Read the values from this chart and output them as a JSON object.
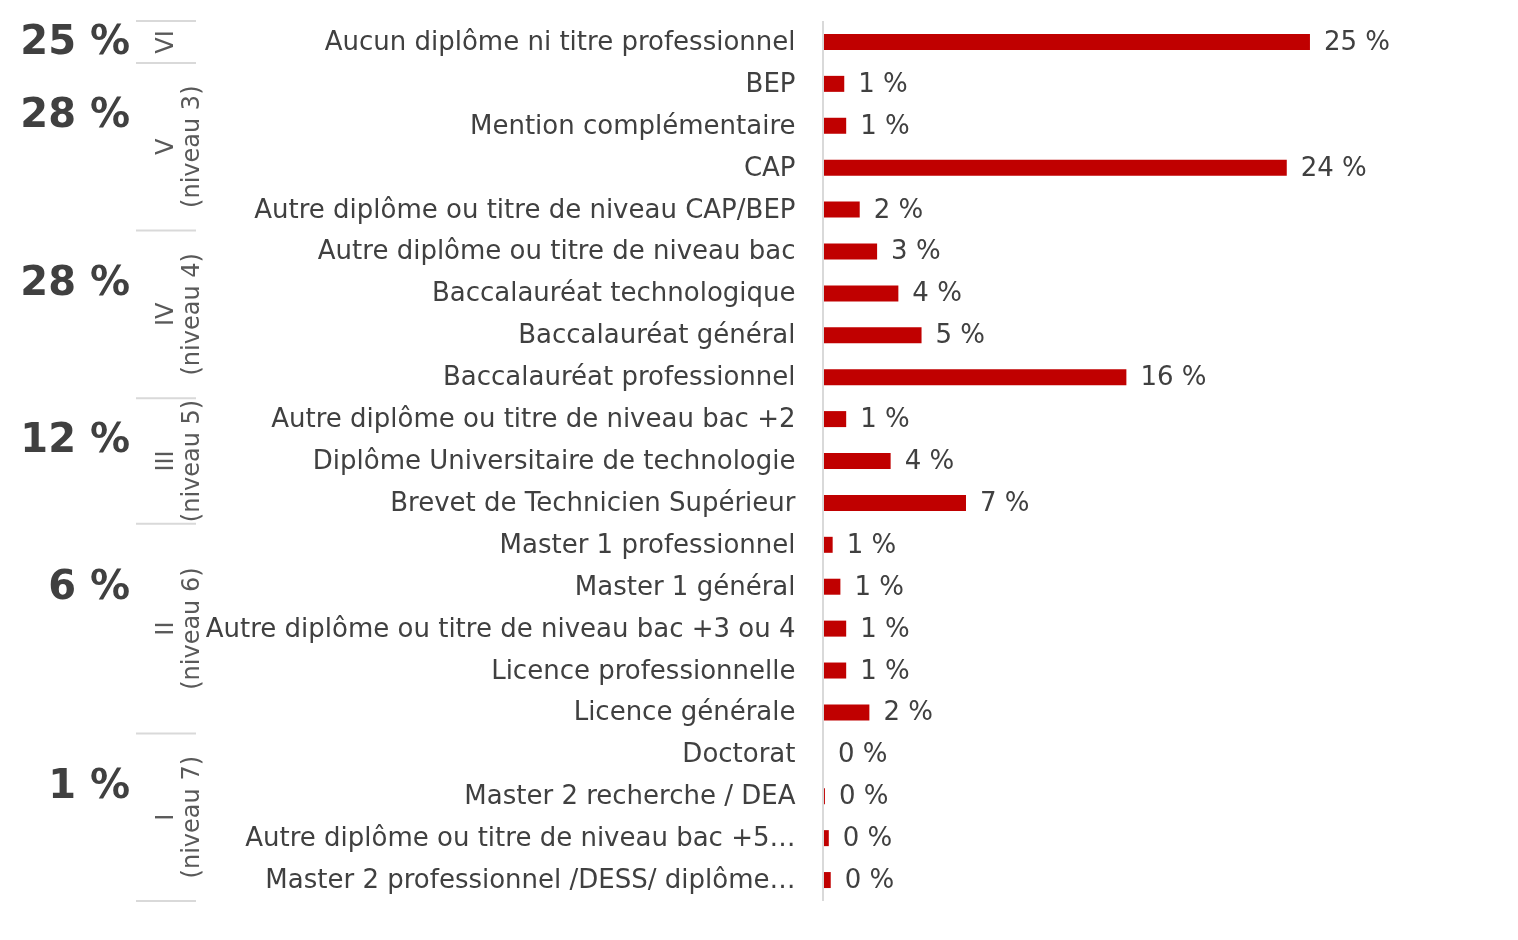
{
  "chart_data": {
    "type": "bar",
    "orientation": "horizontal",
    "categories": [
      "Aucun diplôme ni titre professionnel",
      "BEP",
      "Mention complémentaire",
      "CAP",
      "Autre diplôme ou titre de niveau CAP/BEP",
      "Autre diplôme ou titre de niveau bac",
      "Baccalauréat technologique",
      "Baccalauréat général",
      "Baccalauréat professionnel",
      "Autre diplôme ou titre de niveau bac +2",
      "Diplôme Universitaire de technologie",
      "Brevet de Technicien Supérieur",
      "Master 1 professionnel",
      "Master 1 général",
      "Autre diplôme ou titre de niveau bac +3 ou 4",
      "Licence professionnelle",
      "Licence générale",
      "Doctorat",
      "Master 2 recherche / DEA",
      "Autre diplôme ou titre de niveau bac +5…",
      "Master 2 professionnel /DESS/ diplôme…"
    ],
    "series": [
      {
        "color": "#c00000",
        "values": [
          25.2,
          1.1,
          1.2,
          24.0,
          1.9,
          2.8,
          3.9,
          5.1,
          15.7,
          1.2,
          3.5,
          7.4,
          0.5,
          0.9,
          1.2,
          1.2,
          2.4,
          0.05,
          0.1,
          0.3,
          0.4
        ],
        "value_labels": [
          "25 %",
          "1 %",
          "1 %",
          "24 %",
          "2 %",
          "3 %",
          "4 %",
          "5 %",
          "16 %",
          "1 %",
          "4 %",
          "7 %",
          "1 %",
          "1 %",
          "1 %",
          "1 %",
          "2 %",
          "0 %",
          "0 %",
          "0 %",
          "0 %"
        ]
      }
    ],
    "annotations": [
      "25 %",
      "VI",
      "28 %",
      "V (niveau 3)",
      "28 %",
      "IV (niveau 4)",
      "12 %",
      "III (niveau 5)",
      "6 %",
      "II (niveau 6)",
      "1 %",
      "I (niveau 7)"
    ],
    "legend": false,
    "grid": false
  }
}
